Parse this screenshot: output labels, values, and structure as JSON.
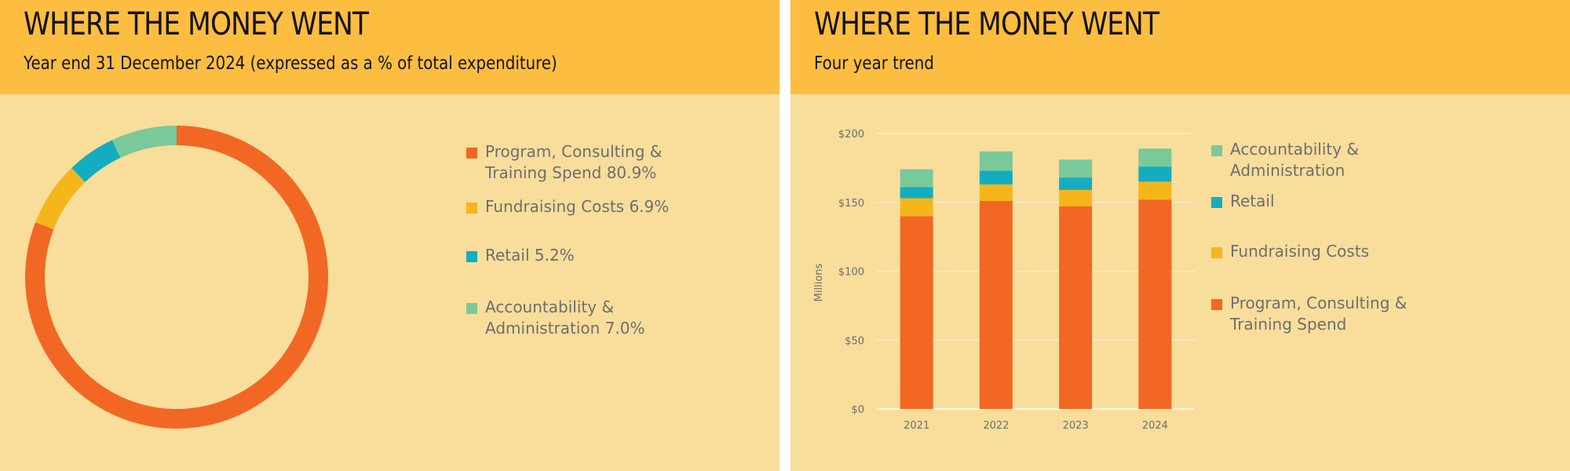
{
  "left_panel": {
    "title": "WHERE THE MONEY WENT",
    "subtitle": "Year end 31 December 2024 (expressed as a % of total expenditure)"
  },
  "right_panel": {
    "title": "WHERE THE MONEY WENT",
    "subtitle": "Four year trend"
  },
  "chart_data": [
    {
      "type": "pie",
      "style": "donut",
      "slices": [
        {
          "label": "Program, Consulting & Training Spend 80.9%",
          "value": 80.9,
          "color": "#f26724"
        },
        {
          "label": "Fundraising Costs 6.9%",
          "value": 6.9,
          "color": "#f5b61c"
        },
        {
          "label": "Retail 5.2%",
          "value": 5.2,
          "color": "#14adbf"
        },
        {
          "label": "Accountability & Administration 7.0%",
          "value": 7.0,
          "color": "#79c99a"
        }
      ],
      "legend_position": "right"
    },
    {
      "type": "bar",
      "stacked": true,
      "categories": [
        "2021",
        "2022",
        "2023",
        "2024"
      ],
      "series": [
        {
          "name": "Program, Consulting & Training Spend",
          "color": "#f26724",
          "values": [
            140,
            151,
            147,
            152
          ]
        },
        {
          "name": "Fundraising Costs",
          "color": "#f5b61c",
          "values": [
            13,
            12,
            12,
            13
          ]
        },
        {
          "name": "Retail",
          "color": "#14adbf",
          "values": [
            8,
            10,
            9,
            11
          ]
        },
        {
          "name": "Accountability & Administration",
          "color": "#79c99a",
          "values": [
            13,
            14,
            13,
            13
          ]
        }
      ],
      "legend_order": [
        "Accountability & Administration",
        "Retail",
        "Fundraising Costs",
        "Program, Consulting & Training Spend"
      ],
      "ylabel": "Millions",
      "ylim": [
        0,
        200
      ],
      "yticks": [
        0,
        50,
        100,
        150,
        200
      ],
      "ytick_labels": [
        "$0",
        "$50",
        "$100",
        "$150",
        "$200"
      ],
      "grid": true,
      "legend_position": "right"
    }
  ]
}
